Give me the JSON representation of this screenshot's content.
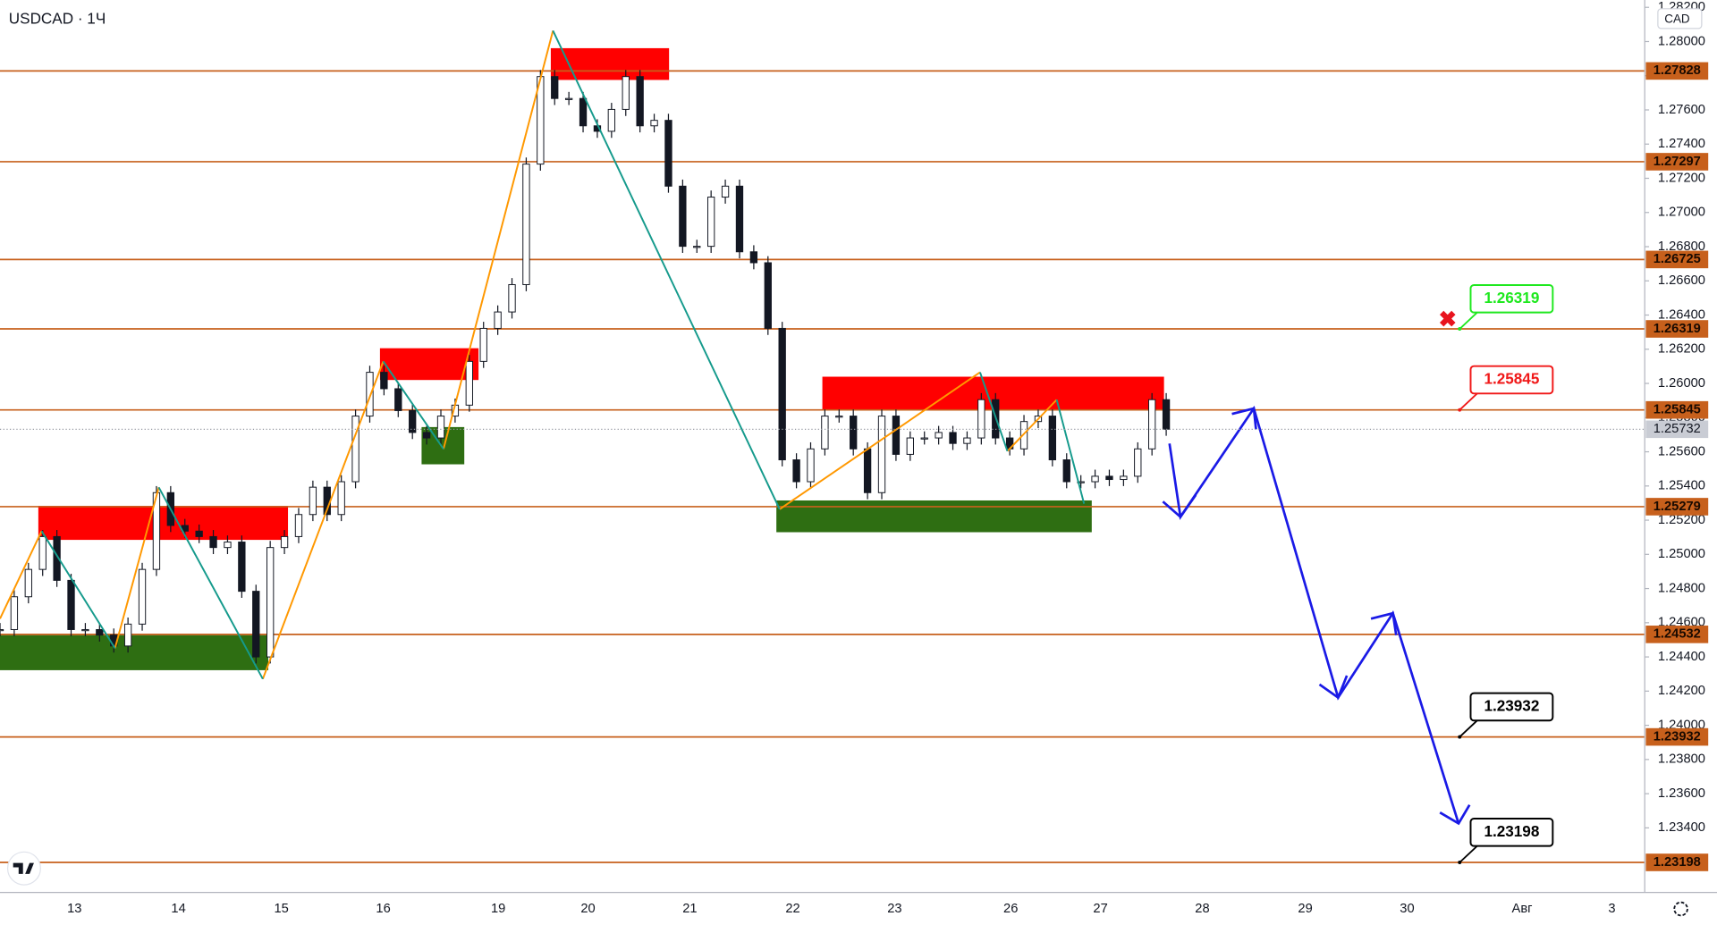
{
  "chart_data": {
    "type": "candlestick",
    "title": "USDCAD · 1Ч",
    "currency": "CAD",
    "closes": [
      1.2456,
      1.24752,
      1.24912,
      1.25104,
      1.24848,
      1.2456,
      1.2456,
      1.24528,
      1.24464,
      1.24592,
      1.24912,
      1.25361,
      1.25169,
      1.25136,
      1.25104,
      1.2504,
      1.25072,
      1.24784,
      1.244,
      1.2504,
      1.25104,
      1.25233,
      1.25393,
      1.25233,
      1.25425,
      1.25809,
      1.26065,
      1.25969,
      1.25841,
      1.25713,
      1.25681,
      1.25809,
      1.25873,
      1.26129,
      1.26322,
      1.26418,
      1.26578,
      1.27283,
      1.27795,
      1.27667,
      1.27667,
      1.27507,
      1.27475,
      1.27603,
      1.27795,
      1.27507,
      1.27539,
      1.27154,
      1.26802,
      1.26802,
      1.2709,
      1.27154,
      1.2677,
      1.26706,
      1.26322,
      1.25553,
      1.25425,
      1.25617,
      1.25809,
      1.25809,
      1.25617,
      1.25361,
      1.25809,
      1.25585,
      1.25681,
      1.25681,
      1.25713,
      1.25649,
      1.25681,
      1.25905,
      1.25681,
      1.25617,
      1.25777,
      1.25809,
      1.25553,
      1.25425,
      1.25425,
      1.25457,
      1.25438,
      1.25457,
      1.25617,
      1.25905,
      1.25732
    ],
    "ylim": [
      1.23022,
      1.28243
    ],
    "yticks": [
      {
        "value": 1.234,
        "label": "1.23400"
      },
      {
        "value": 1.236,
        "label": "1.23600"
      },
      {
        "value": 1.238,
        "label": "1.23800"
      },
      {
        "value": 1.24,
        "label": "1.24000"
      },
      {
        "value": 1.242,
        "label": "1.24200"
      },
      {
        "value": 1.244,
        "label": "1.24400"
      },
      {
        "value": 1.246,
        "label": "1.24600"
      },
      {
        "value": 1.248,
        "label": "1.24800"
      },
      {
        "value": 1.25,
        "label": "1.25000"
      },
      {
        "value": 1.252,
        "label": "1.25200"
      },
      {
        "value": 1.254,
        "label": "1.25400"
      },
      {
        "value": 1.256,
        "label": "1.25600"
      },
      {
        "value": 1.258,
        "label": "1.25800"
      },
      {
        "value": 1.26,
        "label": "1.26000"
      },
      {
        "value": 1.262,
        "label": "1.26200"
      },
      {
        "value": 1.264,
        "label": "1.26400"
      },
      {
        "value": 1.266,
        "label": "1.26600"
      },
      {
        "value": 1.268,
        "label": "1.26800"
      },
      {
        "value": 1.27,
        "label": "1.27000"
      },
      {
        "value": 1.272,
        "label": "1.27200"
      },
      {
        "value": 1.274,
        "label": "1.27400"
      },
      {
        "value": 1.276,
        "label": "1.27600"
      },
      {
        "value": 1.278,
        "label": "1.27800"
      },
      {
        "value": 1.28,
        "label": "1.28000"
      },
      {
        "value": 1.282,
        "label": "1.28200"
      }
    ],
    "xticks": [
      "13",
      "14",
      "15",
      "16",
      "19",
      "20",
      "21",
      "22",
      "23",
      "26",
      "27",
      "28",
      "29",
      "30",
      "Авг",
      "3"
    ],
    "levels": [
      1.27828,
      1.27297,
      1.26725,
      1.26319,
      1.25845,
      1.25279,
      1.24532,
      1.23932,
      1.23198
    ],
    "current_price": 1.25732,
    "callouts": [
      {
        "value": 1.26319,
        "color": "#1ee81e"
      },
      {
        "value": 1.25845,
        "color": "#f01818"
      },
      {
        "value": 1.23932,
        "color": "#000000"
      },
      {
        "value": 1.23198,
        "color": "#000000"
      }
    ]
  }
}
